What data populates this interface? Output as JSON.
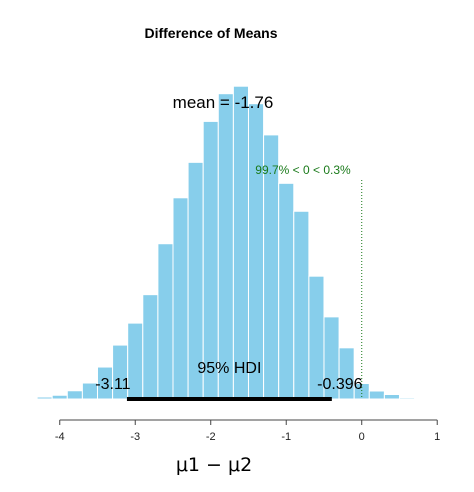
{
  "chart_data": {
    "type": "bar",
    "title": "Difference of Means",
    "xlabel": "μ1 − μ2",
    "xlim": [
      -4.5,
      1.05
    ],
    "ylim": [
      0,
      0.135
    ],
    "xticks": [
      -4,
      -3,
      -2,
      -1,
      0,
      1
    ],
    "bin_width": 0.2,
    "bins": [
      {
        "x": -4.4,
        "y": 0.0004
      },
      {
        "x": -4.2,
        "y": 0.0008
      },
      {
        "x": -4.0,
        "y": 0.0015
      },
      {
        "x": -3.8,
        "y": 0.0033
      },
      {
        "x": -3.6,
        "y": 0.0064
      },
      {
        "x": -3.4,
        "y": 0.0128
      },
      {
        "x": -3.2,
        "y": 0.0216
      },
      {
        "x": -3.0,
        "y": 0.0304
      },
      {
        "x": -2.8,
        "y": 0.0418
      },
      {
        "x": -2.6,
        "y": 0.0622
      },
      {
        "x": -2.4,
        "y": 0.0806
      },
      {
        "x": -2.2,
        "y": 0.0948
      },
      {
        "x": -2.0,
        "y": 0.1112
      },
      {
        "x": -1.8,
        "y": 0.1223
      },
      {
        "x": -1.6,
        "y": 0.1253
      },
      {
        "x": -1.4,
        "y": 0.1183
      },
      {
        "x": -1.2,
        "y": 0.1058
      },
      {
        "x": -1.0,
        "y": 0.0864
      },
      {
        "x": -0.8,
        "y": 0.0752
      },
      {
        "x": -0.6,
        "y": 0.0492
      },
      {
        "x": -0.4,
        "y": 0.0329
      },
      {
        "x": -0.2,
        "y": 0.0205
      },
      {
        "x": 0.0,
        "y": 0.0062
      },
      {
        "x": 0.2,
        "y": 0.0032
      },
      {
        "x": 0.4,
        "y": 0.0018
      },
      {
        "x": 0.6,
        "y": 0.0005
      }
    ],
    "bar_color": "#87CEEB",
    "mean_label": "mean = -1.76",
    "comparison": {
      "value": 0,
      "label": "99.7% < 0 < 0.3%",
      "color": "#1a7a1a"
    },
    "hdi": {
      "label": "95% HDI",
      "low": -3.11,
      "high": -0.396,
      "low_label": "-3.11",
      "high_label": "-0.396"
    }
  }
}
